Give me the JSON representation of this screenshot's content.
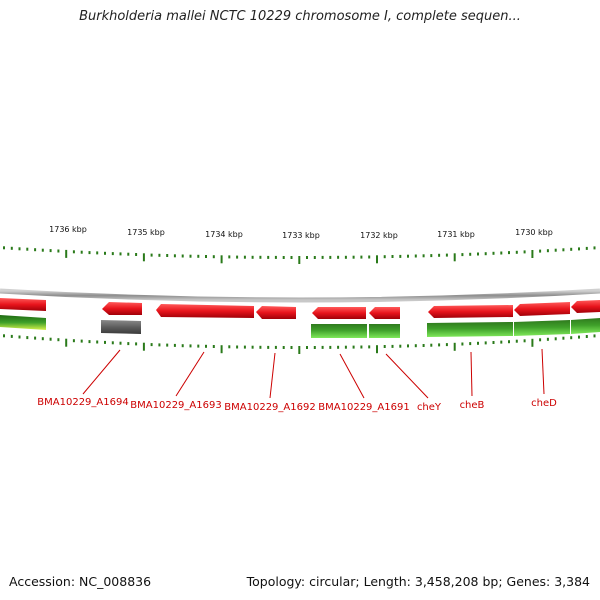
{
  "title": "Burkholderia mallei NCTC 10229 chromosome I, complete sequen...",
  "footer": {
    "accession": "Accession: NC_008836",
    "summary": "Topology: circular; Length: 3,458,208 bp; Genes: 3,384"
  },
  "colors": {
    "forward_gene": "#e8141c",
    "reverse_gene_top": "#2f7a1e",
    "reverse_gene_bottom": "#6fe04a",
    "pseudo_gene": "#6a6a6a",
    "label": "#cc0000",
    "ticks": "#2a7a1a",
    "backbone": "#9a9a9a"
  },
  "scale": {
    "labels": [
      "1736 kbp",
      "1735 kbp",
      "1734 kbp",
      "1733 kbp",
      "1732 kbp",
      "1731 kbp",
      "1730 kbp"
    ]
  },
  "gene_labels": [
    "BMA10229_A1694",
    "BMA10229_A1693",
    "BMA10229_A1692",
    "BMA10229_A1691",
    "cheY",
    "cheB",
    "cheD"
  ]
}
